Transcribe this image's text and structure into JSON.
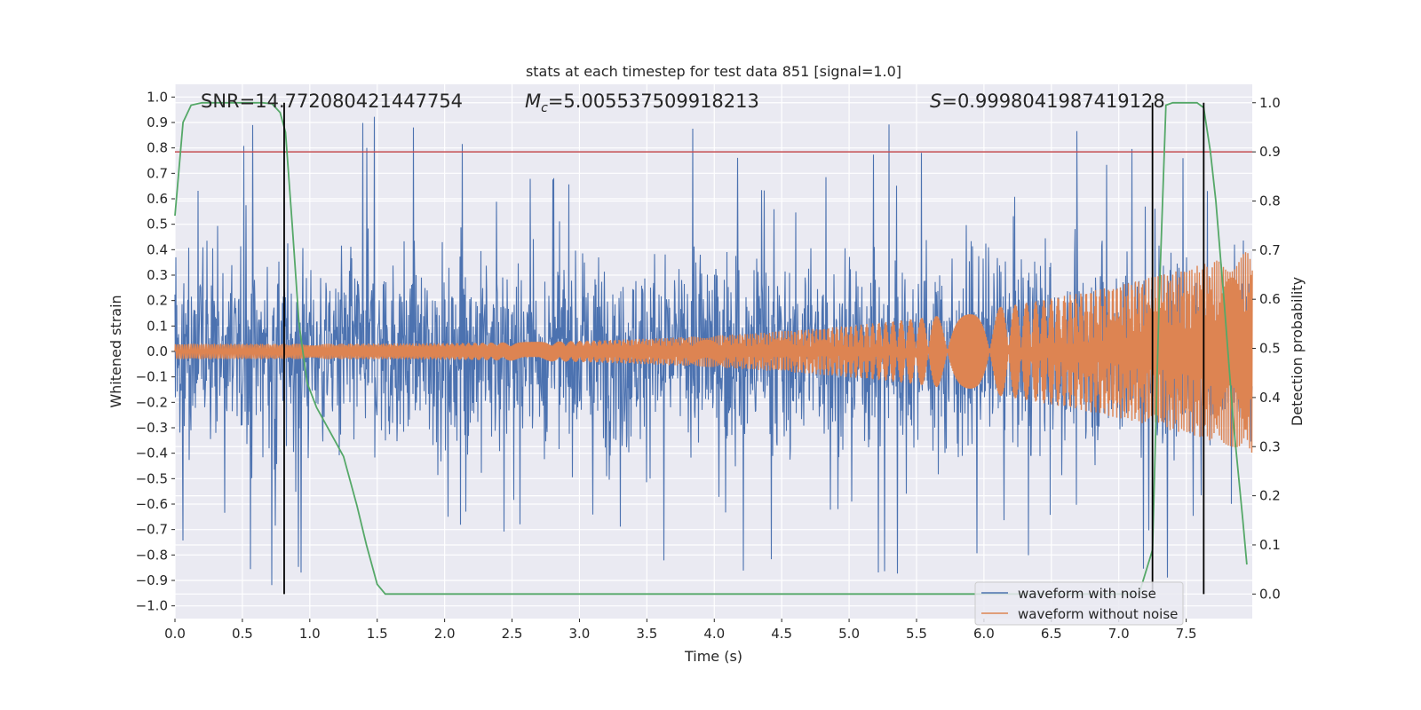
{
  "chart_data": {
    "type": "line",
    "title": "stats at each timestep for test data 851 [signal=1.0]",
    "xlabel": "Time (s)",
    "ylabel": "Whitened strain",
    "y2label": "Detection probability",
    "xlim": [
      0.0,
      7.99
    ],
    "ylim": [
      -1.05,
      1.05
    ],
    "y2lim": [
      -0.05,
      1.0375
    ],
    "x_ticks": [
      "0.0",
      "0.5",
      "1.0",
      "1.5",
      "2.0",
      "2.5",
      "3.0",
      "3.5",
      "4.0",
      "4.5",
      "5.0",
      "5.5",
      "6.0",
      "6.5",
      "7.0",
      "7.5"
    ],
    "y_ticks": [
      "1.0",
      "0.9",
      "0.8",
      "0.7",
      "0.6",
      "0.5",
      "0.4",
      "0.3",
      "0.2",
      "0.1",
      "0.0",
      "−0.1",
      "−0.2",
      "−0.3",
      "−0.4",
      "−0.5",
      "−0.6",
      "−0.7",
      "−0.8",
      "−0.9",
      "−1.0"
    ],
    "y2_ticks": [
      "1.0",
      "0.9",
      "0.8",
      "0.7",
      "0.6",
      "0.5",
      "0.4",
      "0.3",
      "0.2",
      "0.1",
      "0.0"
    ],
    "annotations": {
      "snr": "SNR=14.772080421447754",
      "mc_symbol": "M",
      "mc_sub": "c",
      "mc_value": "=5.005537509918213",
      "s_symbol": "S",
      "s_value": "=0.9998041987419128"
    },
    "threshold": {
      "y2": 0.9,
      "color": "#c44e52"
    },
    "vertical_lines": [
      0.81,
      7.25,
      7.63
    ],
    "series": [
      {
        "name": "waveform with noise",
        "color": "#4c72b0",
        "approx_amplitude": 0.45
      },
      {
        "name": "waveform without noise",
        "color": "#dd8452",
        "approx_amplitude_start": 0.03,
        "approx_amplitude_end": 0.4
      },
      {
        "name": "detection probability",
        "color": "#55a868",
        "axis": "right",
        "x": [
          0.0,
          0.06,
          0.12,
          0.2,
          0.3,
          0.5,
          0.65,
          0.72,
          0.78,
          0.82,
          0.87,
          0.92,
          0.98,
          1.05,
          1.15,
          1.25,
          1.35,
          1.42,
          1.5,
          1.56,
          1.65,
          2.0,
          3.0,
          4.0,
          5.0,
          6.0,
          7.0,
          7.15,
          7.25,
          7.3,
          7.35,
          7.4,
          7.5,
          7.58,
          7.63,
          7.68,
          7.72,
          7.78,
          7.85,
          7.92,
          7.95
        ],
        "y": [
          0.77,
          0.96,
          0.995,
          1.0,
          1.0,
          1.0,
          1.0,
          0.998,
          0.98,
          0.94,
          0.75,
          0.55,
          0.43,
          0.38,
          0.33,
          0.28,
          0.18,
          0.1,
          0.02,
          0.0,
          0.0,
          0.0,
          0.0,
          0.0,
          0.0,
          0.0,
          0.0,
          0.0,
          0.09,
          0.6,
          0.995,
          1.0,
          1.0,
          1.0,
          0.99,
          0.9,
          0.8,
          0.6,
          0.35,
          0.15,
          0.06
        ]
      }
    ],
    "legend": {
      "position": "bottom-right",
      "entries": [
        "waveform with noise",
        "waveform without noise"
      ]
    }
  }
}
